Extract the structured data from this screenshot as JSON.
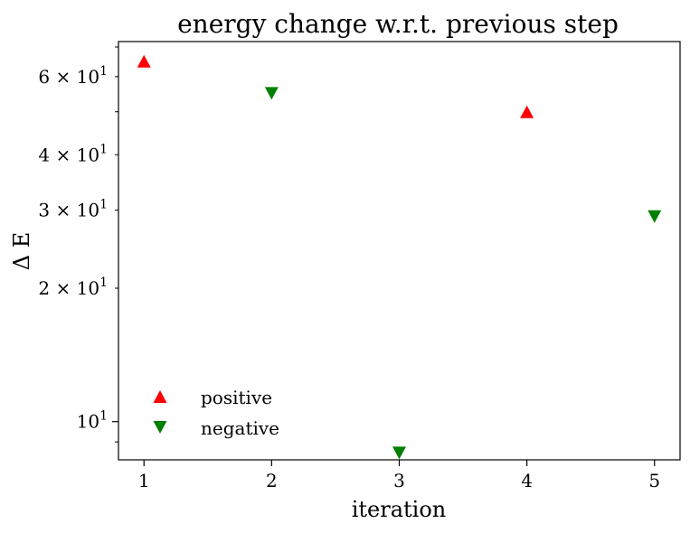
{
  "chart_data": {
    "type": "scatter",
    "title": "energy change w.r.t. previous step",
    "xlabel": "iteration",
    "ylabel": "Δ E",
    "xscale": "linear",
    "yscale": "log",
    "xlim": [
      0.8,
      5.2
    ],
    "ylim": [
      8.2,
      72
    ],
    "xticks": [
      {
        "value": 1,
        "label": "1"
      },
      {
        "value": 2,
        "label": "2"
      },
      {
        "value": 3,
        "label": "3"
      },
      {
        "value": 4,
        "label": "4"
      },
      {
        "value": 5,
        "label": "5"
      }
    ],
    "yticks_major": [
      {
        "value": 10,
        "base": "10",
        "exp": "1"
      }
    ],
    "yticks_minor_labeled": [
      {
        "value": 20,
        "coef": "2",
        "base": "10",
        "exp": "1"
      },
      {
        "value": 30,
        "coef": "3",
        "base": "10",
        "exp": "1"
      },
      {
        "value": 40,
        "coef": "4",
        "base": "10",
        "exp": "1"
      },
      {
        "value": 60,
        "coef": "6",
        "base": "10",
        "exp": "1"
      }
    ],
    "yticks_minor_unlabeled": [
      9,
      50,
      70
    ],
    "legend_position": "lower-left",
    "grid": false,
    "series": [
      {
        "name": "positive",
        "marker": "triangle-up",
        "color": "#ff0000",
        "points": [
          {
            "x": 1,
            "y": 65
          },
          {
            "x": 4,
            "y": 50
          }
        ]
      },
      {
        "name": "negative",
        "marker": "triangle-down",
        "color": "#008000",
        "points": [
          {
            "x": 2,
            "y": 55
          },
          {
            "x": 3,
            "y": 8.5
          },
          {
            "x": 5,
            "y": 29
          }
        ]
      }
    ]
  }
}
